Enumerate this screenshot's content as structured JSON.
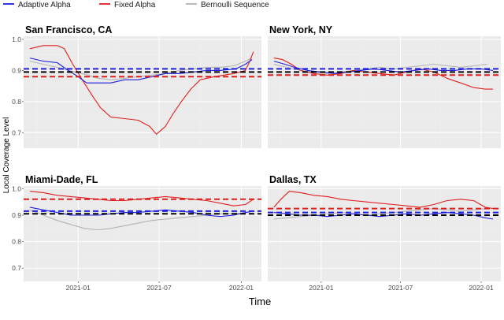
{
  "colors": {
    "adaptive": "#1f1fe0",
    "fixed": "#e01f1f",
    "bernoulli": "#b3b3b3",
    "reference": "#000000",
    "panel_bg": "#ebebeb",
    "grid_major": "#ffffff",
    "grid_minor": "#f3f3f3"
  },
  "chart_data": {
    "type": "line",
    "layout": "facet-2x2",
    "ylabel": "Local Coverage Level",
    "xlabel": "Time",
    "legend": {
      "placement": "top-left",
      "entries": [
        {
          "name": "Adaptive Alpha",
          "color_key": "adaptive"
        },
        {
          "name": "Fixed Alpha",
          "color_key": "fixed"
        },
        {
          "name": "Bernoulli Sequence",
          "color_key": "bernoulli"
        }
      ]
    },
    "xlim": [
      "2020-09-01",
      "2022-02-15"
    ],
    "ylim": [
      0.65,
      1.01
    ],
    "yticks": [
      0.7,
      0.8,
      0.9,
      1.0
    ],
    "ytick_labels": [
      "0.7",
      "0.8",
      "0.9",
      "1.0"
    ],
    "xticks": [
      "2021-01-01",
      "2021-07-01",
      "2022-01-01"
    ],
    "xtick_labels": [
      "2021-01",
      "2021-07",
      "2022-01"
    ],
    "grid": true,
    "panels": [
      {
        "title": "San Francisco, CA",
        "hlines": {
          "adaptive": 0.905,
          "reference": 0.895,
          "fixed": 0.88
        },
        "series": {
          "adaptive": [
            [
              "2020-09-15",
              0.94
            ],
            [
              "2020-10-15",
              0.93
            ],
            [
              "2020-11-15",
              0.925
            ],
            [
              "2020-12-10",
              0.9
            ],
            [
              "2021-01-01",
              0.88
            ],
            [
              "2021-01-20",
              0.86
            ],
            [
              "2021-02-15",
              0.86
            ],
            [
              "2021-03-15",
              0.86
            ],
            [
              "2021-04-15",
              0.87
            ],
            [
              "2021-05-15",
              0.87
            ],
            [
              "2021-06-15",
              0.88
            ],
            [
              "2021-07-15",
              0.89
            ],
            [
              "2021-08-15",
              0.89
            ],
            [
              "2021-09-15",
              0.895
            ],
            [
              "2021-10-15",
              0.9
            ],
            [
              "2021-11-15",
              0.9
            ],
            [
              "2021-12-20",
              0.905
            ],
            [
              "2022-01-10",
              0.92
            ],
            [
              "2022-01-25",
              0.935
            ]
          ],
          "fixed": [
            [
              "2020-09-15",
              0.97
            ],
            [
              "2020-10-15",
              0.98
            ],
            [
              "2020-11-15",
              0.98
            ],
            [
              "2020-12-01",
              0.97
            ],
            [
              "2020-12-20",
              0.92
            ],
            [
              "2021-01-10",
              0.87
            ],
            [
              "2021-02-01",
              0.82
            ],
            [
              "2021-02-20",
              0.78
            ],
            [
              "2021-03-15",
              0.75
            ],
            [
              "2021-04-15",
              0.745
            ],
            [
              "2021-05-15",
              0.74
            ],
            [
              "2021-06-10",
              0.72
            ],
            [
              "2021-06-25",
              0.695
            ],
            [
              "2021-07-15",
              0.72
            ],
            [
              "2021-08-01",
              0.76
            ],
            [
              "2021-08-20",
              0.8
            ],
            [
              "2021-09-10",
              0.84
            ],
            [
              "2021-10-01",
              0.87
            ],
            [
              "2021-11-01",
              0.88
            ],
            [
              "2021-12-15",
              0.89
            ],
            [
              "2022-01-10",
              0.9
            ],
            [
              "2022-01-20",
              0.93
            ],
            [
              "2022-01-28",
              0.96
            ]
          ],
          "bernoulli": [
            [
              "2020-09-15",
              0.93
            ],
            [
              "2020-10-15",
              0.92
            ],
            [
              "2020-11-15",
              0.91
            ],
            [
              "2020-12-10",
              0.9
            ],
            [
              "2021-01-10",
              0.89
            ],
            [
              "2021-02-15",
              0.875
            ],
            [
              "2021-03-15",
              0.87
            ],
            [
              "2021-04-15",
              0.875
            ],
            [
              "2021-05-15",
              0.88
            ],
            [
              "2021-06-15",
              0.885
            ],
            [
              "2021-07-15",
              0.89
            ],
            [
              "2021-08-15",
              0.9
            ],
            [
              "2021-09-15",
              0.905
            ],
            [
              "2021-10-15",
              0.91
            ],
            [
              "2021-11-15",
              0.91
            ],
            [
              "2021-12-15",
              0.915
            ],
            [
              "2022-01-10",
              0.93
            ],
            [
              "2022-01-25",
              0.94
            ]
          ]
        }
      },
      {
        "title": "New York, NY",
        "hlines": {
          "adaptive": 0.905,
          "reference": 0.895,
          "fixed": 0.885
        },
        "series": {
          "adaptive": [
            [
              "2020-09-15",
              0.93
            ],
            [
              "2020-10-10",
              0.92
            ],
            [
              "2020-11-01",
              0.91
            ],
            [
              "2020-12-01",
              0.9
            ],
            [
              "2021-01-01",
              0.895
            ],
            [
              "2021-02-01",
              0.89
            ],
            [
              "2021-03-01",
              0.895
            ],
            [
              "2021-04-01",
              0.9
            ],
            [
              "2021-05-01",
              0.905
            ],
            [
              "2021-06-01",
              0.9
            ],
            [
              "2021-07-01",
              0.895
            ],
            [
              "2021-08-01",
              0.9
            ],
            [
              "2021-09-01",
              0.905
            ],
            [
              "2021-10-01",
              0.9
            ],
            [
              "2021-11-01",
              0.9
            ],
            [
              "2021-12-01",
              0.905
            ],
            [
              "2022-01-01",
              0.905
            ],
            [
              "2022-01-28",
              0.9
            ]
          ],
          "fixed": [
            [
              "2020-09-15",
              0.94
            ],
            [
              "2020-10-05",
              0.935
            ],
            [
              "2020-10-25",
              0.92
            ],
            [
              "2020-11-15",
              0.9
            ],
            [
              "2020-12-15",
              0.89
            ],
            [
              "2021-01-15",
              0.885
            ],
            [
              "2021-02-15",
              0.89
            ],
            [
              "2021-03-15",
              0.9
            ],
            [
              "2021-04-15",
              0.895
            ],
            [
              "2021-05-15",
              0.89
            ],
            [
              "2021-06-15",
              0.885
            ],
            [
              "2021-07-15",
              0.895
            ],
            [
              "2021-08-15",
              0.905
            ],
            [
              "2021-09-15",
              0.895
            ],
            [
              "2021-10-15",
              0.875
            ],
            [
              "2021-11-15",
              0.86
            ],
            [
              "2021-12-15",
              0.845
            ],
            [
              "2022-01-10",
              0.84
            ],
            [
              "2022-01-28",
              0.84
            ]
          ],
          "bernoulli": [
            [
              "2020-09-15",
              0.92
            ],
            [
              "2020-10-15",
              0.91
            ],
            [
              "2020-11-15",
              0.9
            ],
            [
              "2020-12-15",
              0.895
            ],
            [
              "2021-01-15",
              0.89
            ],
            [
              "2021-02-15",
              0.895
            ],
            [
              "2021-03-15",
              0.9
            ],
            [
              "2021-04-15",
              0.905
            ],
            [
              "2021-05-15",
              0.91
            ],
            [
              "2021-06-15",
              0.905
            ],
            [
              "2021-07-15",
              0.91
            ],
            [
              "2021-08-15",
              0.915
            ],
            [
              "2021-09-15",
              0.92
            ],
            [
              "2021-10-15",
              0.915
            ],
            [
              "2021-11-15",
              0.91
            ],
            [
              "2021-12-15",
              0.915
            ],
            [
              "2022-01-15",
              0.92
            ]
          ]
        }
      },
      {
        "title": "Miami-Dade, FL",
        "hlines": {
          "fixed": 0.96,
          "adaptive": 0.915,
          "reference": 0.905
        },
        "series": {
          "adaptive": [
            [
              "2020-09-15",
              0.93
            ],
            [
              "2020-10-15",
              0.92
            ],
            [
              "2020-11-15",
              0.91
            ],
            [
              "2020-12-15",
              0.9
            ],
            [
              "2021-01-15",
              0.9
            ],
            [
              "2021-02-15",
              0.9
            ],
            [
              "2021-03-15",
              0.905
            ],
            [
              "2021-04-15",
              0.91
            ],
            [
              "2021-05-15",
              0.91
            ],
            [
              "2021-06-15",
              0.915
            ],
            [
              "2021-07-15",
              0.92
            ],
            [
              "2021-08-15",
              0.915
            ],
            [
              "2021-09-15",
              0.91
            ],
            [
              "2021-10-15",
              0.9
            ],
            [
              "2021-11-15",
              0.895
            ],
            [
              "2021-12-15",
              0.9
            ],
            [
              "2022-01-10",
              0.91
            ],
            [
              "2022-01-28",
              0.915
            ]
          ],
          "fixed": [
            [
              "2020-09-15",
              0.99
            ],
            [
              "2020-10-15",
              0.985
            ],
            [
              "2020-11-15",
              0.975
            ],
            [
              "2020-12-15",
              0.97
            ],
            [
              "2021-01-15",
              0.965
            ],
            [
              "2021-02-15",
              0.96
            ],
            [
              "2021-03-15",
              0.955
            ],
            [
              "2021-04-15",
              0.955
            ],
            [
              "2021-05-15",
              0.96
            ],
            [
              "2021-06-15",
              0.965
            ],
            [
              "2021-07-15",
              0.97
            ],
            [
              "2021-08-15",
              0.965
            ],
            [
              "2021-09-15",
              0.96
            ],
            [
              "2021-10-15",
              0.955
            ],
            [
              "2021-11-15",
              0.945
            ],
            [
              "2021-12-15",
              0.935
            ],
            [
              "2022-01-10",
              0.94
            ],
            [
              "2022-01-28",
              0.96
            ]
          ],
          "bernoulli": [
            [
              "2020-09-15",
              0.92
            ],
            [
              "2020-10-15",
              0.9
            ],
            [
              "2020-11-15",
              0.88
            ],
            [
              "2020-12-15",
              0.865
            ],
            [
              "2021-01-15",
              0.85
            ],
            [
              "2021-02-15",
              0.845
            ],
            [
              "2021-03-15",
              0.85
            ],
            [
              "2021-04-15",
              0.86
            ],
            [
              "2021-05-15",
              0.87
            ],
            [
              "2021-06-15",
              0.88
            ],
            [
              "2021-07-15",
              0.885
            ],
            [
              "2021-08-15",
              0.89
            ],
            [
              "2021-09-15",
              0.895
            ],
            [
              "2021-10-15",
              0.9
            ],
            [
              "2021-11-15",
              0.905
            ],
            [
              "2021-12-15",
              0.905
            ],
            [
              "2022-01-15",
              0.91
            ]
          ]
        }
      },
      {
        "title": "Dallas, TX",
        "hlines": {
          "fixed": 0.925,
          "adaptive": 0.91,
          "reference": 0.9
        },
        "series": {
          "adaptive": [
            [
              "2020-09-15",
              0.91
            ],
            [
              "2020-10-15",
              0.905
            ],
            [
              "2020-11-15",
              0.9
            ],
            [
              "2020-12-15",
              0.9
            ],
            [
              "2021-01-15",
              0.895
            ],
            [
              "2021-02-15",
              0.9
            ],
            [
              "2021-03-15",
              0.905
            ],
            [
              "2021-04-15",
              0.9
            ],
            [
              "2021-05-15",
              0.895
            ],
            [
              "2021-06-15",
              0.9
            ],
            [
              "2021-07-15",
              0.905
            ],
            [
              "2021-08-15",
              0.9
            ],
            [
              "2021-09-15",
              0.905
            ],
            [
              "2021-10-15",
              0.91
            ],
            [
              "2021-11-15",
              0.905
            ],
            [
              "2021-12-15",
              0.9
            ],
            [
              "2022-01-10",
              0.89
            ],
            [
              "2022-01-28",
              0.885
            ]
          ],
          "fixed": [
            [
              "2020-09-15",
              0.93
            ],
            [
              "2020-10-01",
              0.96
            ],
            [
              "2020-10-20",
              0.99
            ],
            [
              "2020-11-15",
              0.985
            ],
            [
              "2020-12-15",
              0.975
            ],
            [
              "2021-01-15",
              0.97
            ],
            [
              "2021-02-15",
              0.96
            ],
            [
              "2021-03-15",
              0.955
            ],
            [
              "2021-04-15",
              0.95
            ],
            [
              "2021-05-15",
              0.945
            ],
            [
              "2021-06-15",
              0.94
            ],
            [
              "2021-07-15",
              0.935
            ],
            [
              "2021-08-15",
              0.93
            ],
            [
              "2021-09-15",
              0.94
            ],
            [
              "2021-10-15",
              0.955
            ],
            [
              "2021-11-15",
              0.96
            ],
            [
              "2021-12-15",
              0.955
            ],
            [
              "2022-01-10",
              0.93
            ],
            [
              "2022-01-28",
              0.925
            ]
          ],
          "bernoulli": [
            [
              "2020-09-15",
              0.885
            ],
            [
              "2020-10-15",
              0.89
            ],
            [
              "2020-11-15",
              0.895
            ],
            [
              "2020-12-15",
              0.9
            ],
            [
              "2021-01-15",
              0.905
            ],
            [
              "2021-02-15",
              0.91
            ],
            [
              "2021-03-15",
              0.905
            ],
            [
              "2021-04-15",
              0.9
            ],
            [
              "2021-05-15",
              0.905
            ],
            [
              "2021-06-15",
              0.91
            ],
            [
              "2021-07-15",
              0.915
            ],
            [
              "2021-08-15",
              0.92
            ],
            [
              "2021-09-15",
              0.925
            ],
            [
              "2021-10-15",
              0.92
            ],
            [
              "2021-11-15",
              0.915
            ],
            [
              "2021-12-15",
              0.92
            ],
            [
              "2022-01-15",
              0.925
            ]
          ]
        }
      }
    ]
  }
}
